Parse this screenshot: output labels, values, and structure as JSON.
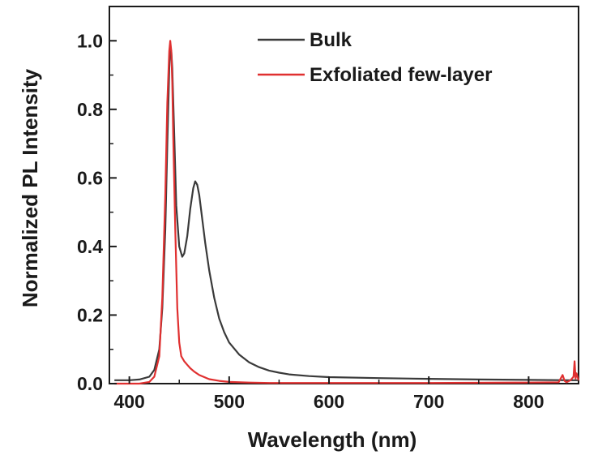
{
  "chart_data": {
    "type": "line",
    "title": "",
    "xlabel": "Wavelength (nm)",
    "ylabel": "Normalized PL Intensity",
    "xlim": [
      380,
      850
    ],
    "ylim": [
      0,
      1.1
    ],
    "x_ticks": [
      400,
      500,
      600,
      700,
      800
    ],
    "x_tick_labels": [
      "400",
      "500",
      "600",
      "700",
      "800"
    ],
    "y_ticks": [
      0,
      0.2,
      0.4,
      0.6,
      0.8,
      1.0
    ],
    "y_tick_labels": [
      "0.0",
      "0.2",
      "0.4",
      "0.6",
      "0.8",
      "1.0"
    ],
    "grid": false,
    "legend_position": "top-right",
    "series": [
      {
        "name": "Bulk",
        "color": "#3a3a3a",
        "x": [
          385,
          400,
          410,
          420,
          425,
          430,
          433,
          436,
          438,
          440,
          441,
          442,
          443,
          445,
          447,
          450,
          453,
          455,
          458,
          461,
          464,
          466,
          468,
          470,
          473,
          476,
          480,
          485,
          490,
          495,
          500,
          510,
          520,
          530,
          540,
          550,
          560,
          580,
          600,
          650,
          700,
          750,
          800,
          840,
          850
        ],
        "y": [
          0.01,
          0.01,
          0.012,
          0.02,
          0.04,
          0.1,
          0.22,
          0.45,
          0.7,
          0.92,
          0.98,
          0.97,
          0.92,
          0.72,
          0.52,
          0.4,
          0.37,
          0.38,
          0.43,
          0.51,
          0.57,
          0.59,
          0.58,
          0.55,
          0.48,
          0.41,
          0.33,
          0.25,
          0.19,
          0.15,
          0.12,
          0.085,
          0.062,
          0.048,
          0.038,
          0.032,
          0.027,
          0.022,
          0.019,
          0.016,
          0.014,
          0.012,
          0.011,
          0.01,
          0.01
        ]
      },
      {
        "name": "Exfoliated few-layer",
        "color": "#e03030",
        "x": [
          385,
          410,
          420,
          425,
          430,
          433,
          436,
          438,
          440,
          441,
          442,
          443,
          444,
          446,
          448,
          450,
          452,
          455,
          458,
          461,
          465,
          470,
          480,
          490,
          500,
          520,
          540,
          600,
          700,
          800,
          830,
          834,
          836,
          838,
          842,
          845,
          846,
          847,
          848,
          850
        ],
        "y": [
          0.0,
          0.0,
          0.005,
          0.02,
          0.08,
          0.25,
          0.55,
          0.82,
          0.97,
          1.0,
          0.97,
          0.88,
          0.72,
          0.45,
          0.22,
          0.12,
          0.08,
          0.065,
          0.055,
          0.045,
          0.035,
          0.025,
          0.013,
          0.008,
          0.005,
          0.003,
          0.002,
          0.002,
          0.002,
          0.003,
          0.004,
          0.025,
          0.008,
          0.004,
          0.01,
          0.02,
          0.065,
          0.015,
          0.03,
          0.01
        ]
      }
    ]
  }
}
